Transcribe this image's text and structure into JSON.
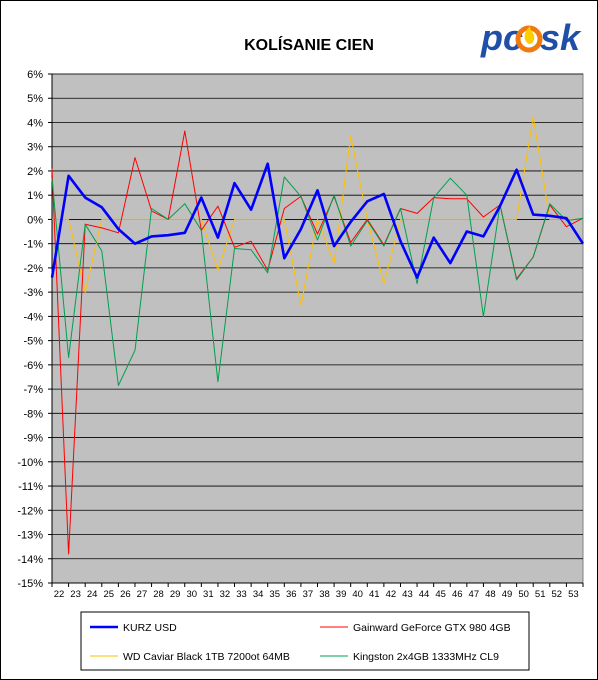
{
  "chart_data": {
    "type": "line",
    "title": "KOLÍSANIE CIEN",
    "xlabel": "",
    "ylabel": "",
    "ylim": [
      -15,
      6
    ],
    "y_ticks": [
      "6%",
      "5%",
      "4%",
      "3%",
      "2%",
      "1%",
      "0%",
      "-1%",
      "-2%",
      "-3%",
      "-4%",
      "-5%",
      "-6%",
      "-7%",
      "-8%",
      "-9%",
      "-10%",
      "-11%",
      "-12%",
      "-13%",
      "-14%",
      "-15%"
    ],
    "x": [
      "22",
      "23",
      "24",
      "25",
      "26",
      "27",
      "28",
      "29",
      "30",
      "31",
      "32",
      "33",
      "34",
      "35",
      "36",
      "37",
      "38",
      "39",
      "40",
      "41",
      "42",
      "43",
      "44",
      "45",
      "46",
      "47",
      "48",
      "49",
      "50",
      "51",
      "52",
      "53",
      ""
    ],
    "grid": true,
    "legend_position": "bottom",
    "series": [
      {
        "name": "KURZ USD",
        "color": "#0000ff",
        "values": [
          -2.4,
          1.8,
          0.9,
          0.5,
          -0.4,
          -1.0,
          -0.7,
          -0.65,
          -0.55,
          0.9,
          -0.75,
          1.5,
          0.4,
          2.3,
          -1.6,
          -0.4,
          1.2,
          -1.1,
          -0.1,
          0.75,
          1.05,
          -0.9,
          -2.4,
          -0.75,
          -1.8,
          -0.5,
          -0.7,
          0.55,
          2.05,
          0.2,
          0.15,
          0.05,
          -1.0
        ]
      },
      {
        "name": "Gainward GeForce GTX 980 4GB",
        "color": "#ff0000",
        "values": [
          2.1,
          -13.8,
          -0.2,
          -0.35,
          -0.55,
          2.55,
          0.35,
          0.0,
          3.65,
          -0.45,
          0.55,
          -1.15,
          -0.9,
          -2.1,
          0.45,
          0.95,
          -0.6,
          0.95,
          -0.95,
          0.0,
          -1.05,
          0.45,
          0.25,
          0.9,
          0.85,
          0.85,
          0.1,
          0.6,
          -2.45,
          -1.55,
          0.6,
          -0.3,
          0.05
        ]
      },
      {
        "name": "WD Caviar Black 1TB 7200ot 64MB",
        "color": "#ffc000",
        "values": [
          0.0,
          0.0,
          -3.0,
          0.0,
          0.0,
          0.0,
          0.0,
          0.0,
          0.0,
          0.0,
          -2.1,
          0.0,
          0.0,
          0.0,
          0.0,
          -3.55,
          0.0,
          -1.8,
          3.45,
          0.0,
          -2.65,
          0.0,
          0.0,
          0.0,
          0.0,
          0.0,
          0.0,
          0.0,
          0.0,
          4.25,
          0.0,
          0.0,
          0.0
        ]
      },
      {
        "name": "Kingston 2x4GB 1333MHz CL9",
        "color": "#00a050",
        "values": [
          1.7,
          -5.7,
          -0.2,
          -1.3,
          -6.85,
          -5.4,
          0.45,
          0.0,
          0.65,
          -0.45,
          -6.7,
          -1.2,
          -1.25,
          -2.2,
          1.75,
          0.95,
          -0.85,
          1.0,
          -1.1,
          -0.05,
          -1.1,
          0.45,
          -2.65,
          0.9,
          1.7,
          1.0,
          -4.0,
          0.6,
          -2.5,
          -1.55,
          0.65,
          -0.05,
          0.05
        ]
      }
    ]
  },
  "logo": {
    "text_left": "pc",
    "text_right": "sk",
    "color_blue": "#1f4fa8",
    "color_flame": "#f07a10"
  },
  "colors": {
    "plot_background": "#c0c0c0",
    "gridline": "#000000"
  }
}
